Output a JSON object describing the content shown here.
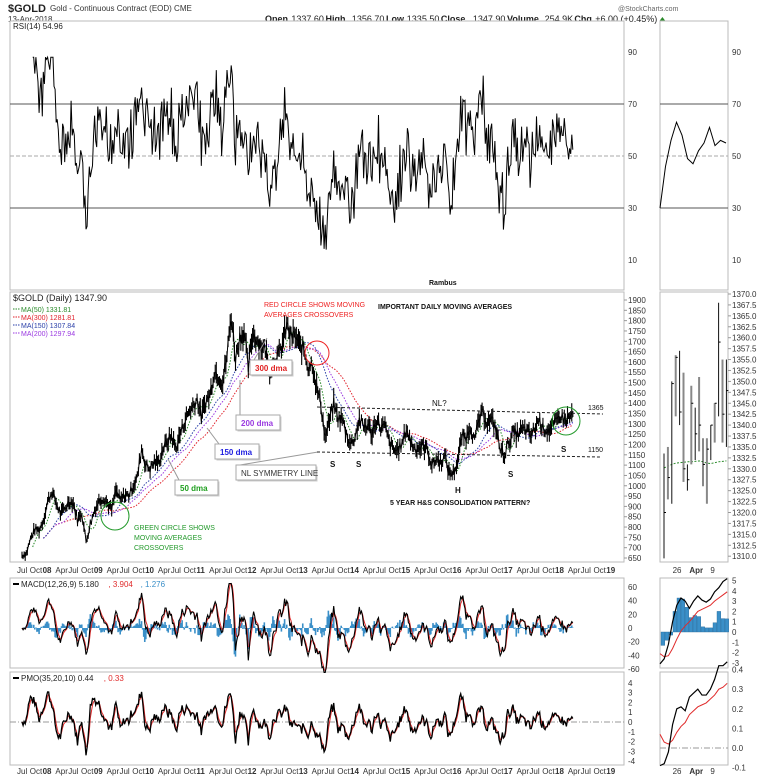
{
  "header": {
    "symbol": "$GOLD",
    "name": "Gold - Continuous Contract (EOD) CME",
    "date": "13-Apr-2018",
    "watermark": "@StockCharts.com",
    "open_label": "Open",
    "open": "1337.60",
    "high_label": "High",
    "high": "1356.70",
    "low_label": "Low",
    "low": "1335.50",
    "close_label": "Close",
    "close": "1347.90",
    "volume_label": "Volume",
    "volume": "254.9K",
    "chg_label": "Chg",
    "chg": "+6.00 (+0.45%)"
  },
  "colors": {
    "ma50": "#2a8a2a",
    "ma300": "#e0202a",
    "ma150": "#2a3fa8",
    "ma200": "#9a3ae0",
    "macd_hist": "#3a8fc8",
    "signal": "#e02a2a",
    "annot_red": "#ee2222",
    "annot_green": "#22992a"
  },
  "chart_data": [
    {
      "type": "line",
      "title": "RSI(14) 54.96",
      "ylim": [
        0,
        100
      ],
      "yticks": [
        "90",
        "70",
        "50",
        "30",
        "10"
      ],
      "ytick_values": [
        90,
        70,
        50,
        30,
        10
      ],
      "reference_lines": [
        70,
        50,
        30
      ],
      "author": "Rambus",
      "mini_values": [
        30,
        46,
        56,
        63,
        58,
        49,
        47,
        52,
        55,
        61,
        54,
        56,
        55
      ]
    },
    {
      "type": "ohlc",
      "title": "$GOLD (Daily) 1347.90",
      "legend": [
        {
          "label": "MA(50) 1331.81",
          "color": "#2a8a2a"
        },
        {
          "label": "MA(300) 1281.81",
          "color": "#e0202a"
        },
        {
          "label": "MA(150) 1307.84",
          "color": "#2a3fa8"
        },
        {
          "label": "MA(200) 1297.94",
          "color": "#9a3ae0"
        }
      ],
      "ylim": [
        630,
        1920
      ],
      "yticks": [
        "1900",
        "1850",
        "1800",
        "1750",
        "1700",
        "1650",
        "1600",
        "1550",
        "1500",
        "1450",
        "1400",
        "1350",
        "1300",
        "1250",
        "1200",
        "1150",
        "1100",
        "1050",
        "1000",
        "950",
        "900",
        "850",
        "800",
        "750",
        "700",
        "650"
      ],
      "start": "Jul 2007",
      "monthly_close": [
        665,
        672,
        743,
        789,
        783,
        834,
        923,
        972,
        916,
        865,
        887,
        926,
        918,
        833,
        870,
        730,
        815,
        882,
        928,
        942,
        916,
        883,
        980,
        927,
        955,
        953,
        1001,
        1040,
        1182,
        1097,
        1083,
        1116,
        1113,
        1180,
        1212,
        1245,
        1181,
        1248,
        1307,
        1357,
        1386,
        1421,
        1332,
        1409,
        1439,
        1556,
        1536,
        1502,
        1628,
        1828,
        1620,
        1724,
        1746,
        1566,
        1738,
        1711,
        1668,
        1664,
        1560,
        1604,
        1622,
        1692,
        1776,
        1719,
        1726,
        1675,
        1663,
        1578,
        1595,
        1476,
        1393,
        1234,
        1313,
        1396,
        1327,
        1323,
        1250,
        1202,
        1240,
        1321,
        1284,
        1295,
        1250,
        1322,
        1282,
        1287,
        1210,
        1171,
        1175,
        1199,
        1278,
        1213,
        1183,
        1184,
        1190,
        1172,
        1095,
        1132,
        1114,
        1142,
        1064,
        1061,
        1117,
        1238,
        1233,
        1293,
        1215,
        1321,
        1350,
        1309,
        1316,
        1277,
        1173,
        1152,
        1211,
        1253,
        1249,
        1269,
        1269,
        1242,
        1270,
        1322,
        1280,
        1271,
        1275,
        1303,
        1345,
        1318,
        1327,
        1348
      ],
      "neckline_upper": 1365,
      "neckline_lower": 1150,
      "annotations": {
        "red_circle": [
          "RED CIRCLE SHOWS MOVING",
          "AVERAGES CROSSOVERS"
        ],
        "important": "IMPORTANT DAILY MOVING AVERAGES",
        "dma300": "300 dma",
        "dma200": "200 dma",
        "dma150": "150 dma",
        "dma50": "50 dma",
        "nl_symmetry": "NL SYMMETRY LINE",
        "nl": "NL?",
        "level_1365": "1365",
        "level_1150": "1150",
        "s": "S",
        "h": "H",
        "pattern": "5 YEAR H&S CONSOLIDATION PATTERN?",
        "green_circle": [
          "GREEN CIRCLE SHOWS",
          "MOVING AVERAGES",
          "CROSSOVERS"
        ]
      },
      "mini": {
        "ylim": [
          1310,
          1370
        ],
        "yticks": [
          "1370.0",
          "1367.5",
          "1365.0",
          "1362.5",
          "1360.0",
          "1357.5",
          "1355.0",
          "1352.5",
          "1350.0",
          "1347.5",
          "1345.0",
          "1342.5",
          "1340.0",
          "1337.5",
          "1335.0",
          "1332.5",
          "1330.0",
          "1327.5",
          "1325.0",
          "1322.5",
          "1320.0",
          "1317.5",
          "1315.0",
          "1312.5",
          "1310.0"
        ],
        "bars": [
          {
            "h": 1333.5,
            "l": 1309.5,
            "c": 1320.0
          },
          {
            "h": 1335,
            "l": 1323,
            "c": 1328.0
          },
          {
            "h": 1350,
            "l": 1322,
            "c": 1349.5
          },
          {
            "h": 1356,
            "l": 1342,
            "c": 1355.5
          },
          {
            "h": 1357,
            "l": 1340,
            "c": 1343.0
          },
          {
            "h": 1352,
            "l": 1327,
            "c": 1330.0
          },
          {
            "h": 1331,
            "l": 1325,
            "c": 1327.5
          },
          {
            "h": 1349,
            "l": 1331,
            "c": 1345.0
          },
          {
            "h": 1344,
            "l": 1332,
            "c": 1338.0
          },
          {
            "h": 1351,
            "l": 1334,
            "c": 1340.0
          },
          {
            "h": 1337,
            "l": 1326,
            "c": 1331.0
          },
          {
            "h": 1337,
            "l": 1322,
            "c": 1334.5
          },
          {
            "h": 1340,
            "l": 1332,
            "c": 1340.0
          },
          {
            "h": 1345,
            "l": 1336,
            "c": 1345.0
          },
          {
            "h": 1368,
            "l": 1342,
            "c": 1359.0
          },
          {
            "h": 1355,
            "l": 1336,
            "c": 1342.5
          },
          {
            "h": 1355,
            "l": 1335,
            "c": 1347.9
          }
        ],
        "ma50": [
          1330.2,
          1330.6,
          1331.0,
          1331.3,
          1331.4,
          1331.5,
          1331.6,
          1331.6,
          1331.7,
          1331.8,
          1331.6,
          1331.3,
          1331.2,
          1331.4,
          1331.6,
          1331.7,
          1331.8
        ]
      }
    },
    {
      "type": "line",
      "title_main": "MACD(12,26,9) 5.180",
      "title_signal": ", 3.904",
      "title_hist": ", 1.276",
      "ylim": [
        -70,
        70
      ],
      "yticks": [
        "60",
        "40",
        "20",
        "0",
        "-20",
        "-40",
        "-60"
      ],
      "mini": {
        "yticks": [
          "5",
          "4",
          "3",
          "2",
          "1",
          "0",
          "-1",
          "-2",
          "-3"
        ],
        "macd": [
          -3.1,
          -2.6,
          -1.2,
          1.0,
          2.6,
          3.3,
          3.0,
          2.3,
          3.0,
          3.5,
          3.1,
          2.9,
          3.2,
          3.9,
          4.3,
          4.9,
          5.18
        ],
        "signal": [
          -2.1,
          -2.4,
          -2.3,
          -1.6,
          -0.7,
          0.1,
          0.6,
          1.0,
          1.5,
          2.0,
          2.2,
          2.4,
          2.6,
          3.0,
          3.3,
          3.6,
          3.9
        ],
        "hist": [
          -1.3,
          -0.8,
          -0.3,
          2.0,
          3.3,
          3.2,
          2.4,
          1.4,
          1.6,
          1.5,
          0.5,
          0.4,
          0.4,
          0.9,
          2.0,
          1.3,
          1.276
        ]
      }
    },
    {
      "type": "line",
      "title_main": "PMO(35,20,10) 0.44",
      "title_signal": ", 0.33",
      "ylim": [
        -4.5,
        4.5
      ],
      "yticks": [
        "4",
        "3",
        "2",
        "1",
        "0",
        "-1",
        "-2",
        "-3",
        "-4"
      ],
      "mini": {
        "yticks": [
          "0.4",
          "0.3",
          "0.2",
          "0.1",
          "0.0",
          "-0.1"
        ],
        "pmo": [
          -0.09,
          -0.08,
          -0.02,
          0.12,
          0.2,
          0.21,
          0.19,
          0.26,
          0.28,
          0.3,
          0.27,
          0.27,
          0.3,
          0.35,
          0.42,
          0.42,
          0.44
        ],
        "signal": [
          0.07,
          0.03,
          0.02,
          0.04,
          0.08,
          0.11,
          0.13,
          0.17,
          0.19,
          0.21,
          0.22,
          0.23,
          0.25,
          0.27,
          0.3,
          0.31,
          0.33
        ]
      }
    }
  ],
  "time_axis": {
    "labels": [
      {
        "t": "Jul",
        "m": 0
      },
      {
        "t": "Oct",
        "m": 3
      },
      {
        "t": "08",
        "m": 6,
        "b": 1
      },
      {
        "t": "Apr",
        "m": 9
      },
      {
        "t": "Jul",
        "m": 12
      },
      {
        "t": "Oct",
        "m": 15
      },
      {
        "t": "09",
        "m": 18,
        "b": 1
      },
      {
        "t": "Apr",
        "m": 21
      },
      {
        "t": "Jul",
        "m": 24
      },
      {
        "t": "Oct",
        "m": 27
      },
      {
        "t": "10",
        "m": 30,
        "b": 1
      },
      {
        "t": "Apr",
        "m": 33
      },
      {
        "t": "Jul",
        "m": 36
      },
      {
        "t": "Oct",
        "m": 39
      },
      {
        "t": "11",
        "m": 42,
        "b": 1
      },
      {
        "t": "Apr",
        "m": 45
      },
      {
        "t": "Jul",
        "m": 48
      },
      {
        "t": "Oct",
        "m": 51
      },
      {
        "t": "12",
        "m": 54,
        "b": 1
      },
      {
        "t": "Apr",
        "m": 57
      },
      {
        "t": "Jul",
        "m": 60
      },
      {
        "t": "Oct",
        "m": 63
      },
      {
        "t": "13",
        "m": 66,
        "b": 1
      },
      {
        "t": "Apr",
        "m": 69
      },
      {
        "t": "Jul",
        "m": 72
      },
      {
        "t": "Oct",
        "m": 75
      },
      {
        "t": "14",
        "m": 78,
        "b": 1
      },
      {
        "t": "Apr",
        "m": 81
      },
      {
        "t": "Jul",
        "m": 84
      },
      {
        "t": "Oct",
        "m": 87
      },
      {
        "t": "15",
        "m": 90,
        "b": 1
      },
      {
        "t": "Apr",
        "m": 93
      },
      {
        "t": "Jul",
        "m": 96
      },
      {
        "t": "Oct",
        "m": 99
      },
      {
        "t": "16",
        "m": 102,
        "b": 1
      },
      {
        "t": "Apr",
        "m": 105
      },
      {
        "t": "Jul",
        "m": 108
      },
      {
        "t": "Oct",
        "m": 111
      },
      {
        "t": "17",
        "m": 114,
        "b": 1
      },
      {
        "t": "Apr",
        "m": 117
      },
      {
        "t": "Jul",
        "m": 120
      },
      {
        "t": "Oct",
        "m": 123
      },
      {
        "t": "18",
        "m": 126,
        "b": 1
      },
      {
        "t": "Apr",
        "m": 129
      },
      {
        "t": "Jul",
        "m": 132
      },
      {
        "t": "Oct",
        "m": 135
      },
      {
        "t": "19",
        "m": 138,
        "b": 1
      }
    ],
    "mini_labels": [
      {
        "t": "26",
        "d": 3
      },
      {
        "t": "Apr",
        "d": 7,
        "b": 1
      },
      {
        "t": "9",
        "d": 12
      }
    ]
  }
}
